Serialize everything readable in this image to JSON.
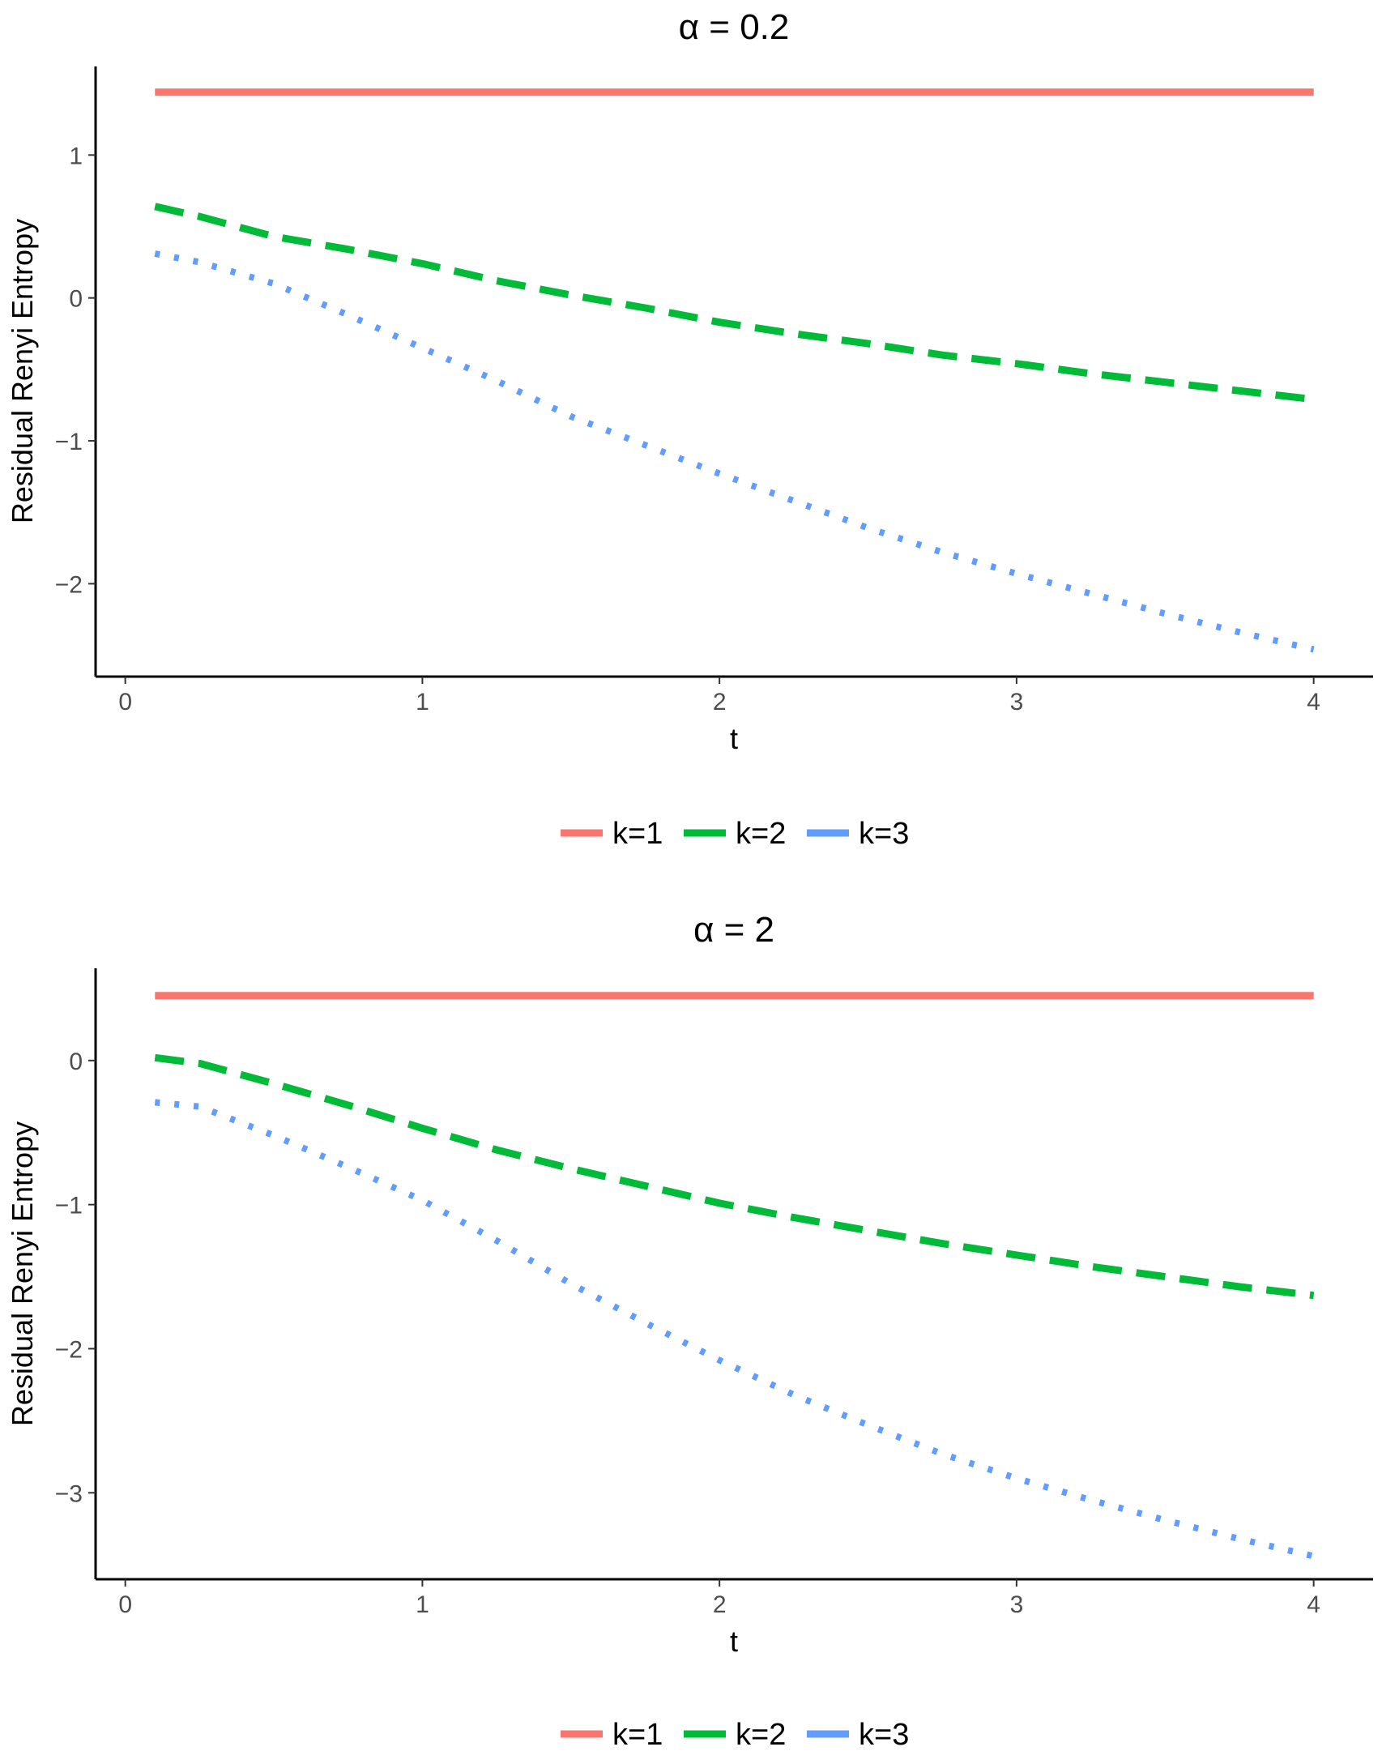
{
  "chart_data": [
    {
      "type": "line",
      "title": "α = 0.2",
      "xlabel": "t",
      "ylabel": "Residual Renyi Entropy",
      "xlim": [
        -0.1,
        4.2
      ],
      "ylim": [
        -2.65,
        1.62
      ],
      "xticks": [
        0,
        1,
        2,
        3,
        4
      ],
      "xtick_labels": [
        "0",
        "1",
        "2",
        "3",
        "4"
      ],
      "yticks": [
        -2,
        -1,
        0,
        1
      ],
      "ytick_labels": [
        "−2",
        "−1",
        "0",
        "1"
      ],
      "legend_position": "bottom",
      "grid": false,
      "x": [
        0.1,
        0.25,
        0.5,
        0.75,
        1.0,
        1.25,
        1.5,
        1.75,
        2.0,
        2.25,
        2.5,
        2.75,
        3.0,
        3.25,
        3.5,
        3.75,
        4.0
      ],
      "series": [
        {
          "name": "k=1",
          "color": "#F8766D",
          "style": "solid",
          "values": [
            1.44,
            1.44,
            1.44,
            1.44,
            1.44,
            1.44,
            1.44,
            1.44,
            1.44,
            1.44,
            1.44,
            1.44,
            1.44,
            1.44,
            1.44,
            1.44,
            1.44
          ]
        },
        {
          "name": "k=2",
          "color": "#00BA38",
          "style": "dashed",
          "values": [
            0.64,
            0.57,
            0.43,
            0.34,
            0.24,
            0.12,
            0.02,
            -0.07,
            -0.17,
            -0.25,
            -0.32,
            -0.4,
            -0.46,
            -0.53,
            -0.59,
            -0.65,
            -0.71
          ]
        },
        {
          "name": "k=3",
          "color": "#619CFF",
          "style": "dotted",
          "values": [
            0.31,
            0.25,
            0.1,
            -0.12,
            -0.35,
            -0.58,
            -0.83,
            -1.03,
            -1.23,
            -1.42,
            -1.61,
            -1.78,
            -1.93,
            -2.07,
            -2.21,
            -2.34,
            -2.46
          ]
        }
      ]
    },
    {
      "type": "line",
      "title": "α = 2",
      "xlabel": "t",
      "ylabel": "Residual Renyi Entropy",
      "xlim": [
        -0.1,
        4.2
      ],
      "ylim": [
        -3.6,
        0.64
      ],
      "xticks": [
        0,
        1,
        2,
        3,
        4
      ],
      "xtick_labels": [
        "0",
        "1",
        "2",
        "3",
        "4"
      ],
      "yticks": [
        -3,
        -2,
        -1,
        0
      ],
      "ytick_labels": [
        "−3",
        "−2",
        "−1",
        "0"
      ],
      "legend_position": "bottom",
      "grid": false,
      "x": [
        0.1,
        0.25,
        0.5,
        0.75,
        1.0,
        1.25,
        1.5,
        1.75,
        2.0,
        2.25,
        2.5,
        2.75,
        3.0,
        3.25,
        3.5,
        3.75,
        4.0
      ],
      "series": [
        {
          "name": "k=1",
          "color": "#F8766D",
          "style": "solid",
          "values": [
            0.45,
            0.45,
            0.45,
            0.45,
            0.45,
            0.45,
            0.45,
            0.45,
            0.45,
            0.45,
            0.45,
            0.45,
            0.45,
            0.45,
            0.45,
            0.45,
            0.45
          ]
        },
        {
          "name": "k=2",
          "color": "#00BA38",
          "style": "dashed",
          "values": [
            0.02,
            -0.02,
            -0.16,
            -0.31,
            -0.47,
            -0.62,
            -0.75,
            -0.87,
            -0.99,
            -1.09,
            -1.18,
            -1.27,
            -1.35,
            -1.43,
            -1.5,
            -1.57,
            -1.63
          ]
        },
        {
          "name": "k=3",
          "color": "#619CFF",
          "style": "dotted",
          "values": [
            -0.29,
            -0.32,
            -0.52,
            -0.74,
            -0.97,
            -1.25,
            -1.55,
            -1.82,
            -2.08,
            -2.32,
            -2.53,
            -2.73,
            -2.9,
            -3.05,
            -3.19,
            -3.32,
            -3.44
          ]
        }
      ]
    }
  ]
}
